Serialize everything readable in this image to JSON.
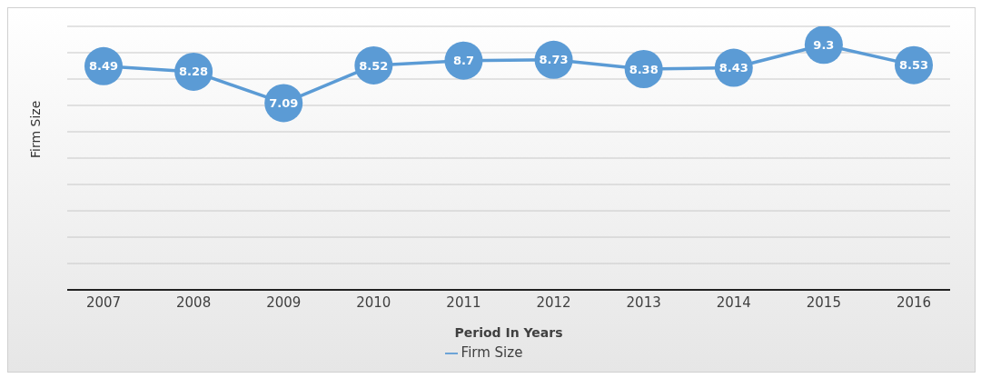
{
  "chart_data": {
    "type": "line",
    "xlabel": "Period In Years",
    "ylabel": "Firm Size",
    "categories": [
      "2007",
      "2008",
      "2009",
      "2010",
      "2011",
      "2012",
      "2013",
      "2014",
      "2015",
      "2016"
    ],
    "series": [
      {
        "name": "Firm Size",
        "color": "#5b9bd5",
        "values": [
          8.49,
          8.28,
          7.09,
          8.52,
          8.7,
          8.73,
          8.38,
          8.43,
          9.3,
          8.53
        ]
      }
    ],
    "ylim": [
      0,
      10
    ],
    "yticks": [
      {
        "value": 0,
        "label": null
      },
      {
        "value": 1,
        "label": null
      },
      {
        "value": 2,
        "label": null
      },
      {
        "value": 3,
        "label": null
      },
      {
        "value": 4,
        "label": null
      },
      {
        "value": 5,
        "label": null
      },
      {
        "value": 6,
        "label": null
      },
      {
        "value": 7,
        "label": null
      },
      {
        "value": 8,
        "label": null
      },
      {
        "value": 9,
        "label": null
      },
      {
        "value": 10,
        "label": null
      }
    ],
    "tick_labels": "x",
    "grid": "y",
    "legend": "bottom",
    "marker": "circle",
    "line_style": "solid",
    "data_labels": true
  }
}
